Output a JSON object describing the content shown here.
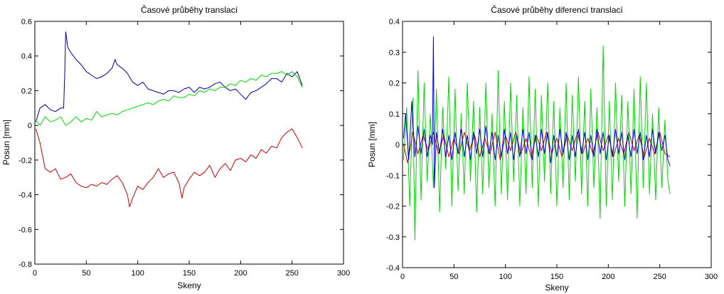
{
  "chart_data": [
    {
      "type": "line",
      "title": "Časové průběhy translací",
      "xlabel": "Skeny",
      "ylabel": "Posun [mm]",
      "xlim": [
        0,
        300
      ],
      "ylim": [
        -0.8,
        0.6
      ],
      "xticks": [
        0,
        50,
        100,
        150,
        200,
        250,
        300
      ],
      "xtick_labels": [
        "0",
        "50",
        "100",
        "150",
        "200",
        "250",
        "300"
      ],
      "yticks": [
        0.6,
        0.4,
        0.2,
        0,
        -0.2,
        -0.4,
        -0.6,
        -0.8
      ],
      "ytick_labels": [
        "0.6",
        "0.4",
        "0.2",
        "0",
        "-0.2",
        "-0.4",
        "-0.6",
        "-0.8"
      ],
      "grid": false,
      "legend": "none",
      "series": [
        {
          "color": "#0000a0",
          "x": [
            1,
            5,
            10,
            15,
            20,
            25,
            28,
            29,
            30,
            32,
            35,
            40,
            45,
            50,
            55,
            60,
            65,
            70,
            75,
            78,
            80,
            85,
            90,
            95,
            100,
            105,
            110,
            115,
            120,
            125,
            130,
            135,
            140,
            145,
            150,
            155,
            160,
            165,
            170,
            175,
            180,
            185,
            190,
            195,
            200,
            205,
            210,
            215,
            220,
            225,
            230,
            235,
            240,
            245,
            250,
            255,
            260
          ],
          "y": [
            0.02,
            0.1,
            0.12,
            0.09,
            0.08,
            0.1,
            0.1,
            0.3,
            0.54,
            0.45,
            0.42,
            0.38,
            0.35,
            0.31,
            0.29,
            0.27,
            0.28,
            0.3,
            0.33,
            0.38,
            0.35,
            0.33,
            0.3,
            0.25,
            0.23,
            0.25,
            0.21,
            0.2,
            0.19,
            0.18,
            0.2,
            0.2,
            0.19,
            0.21,
            0.22,
            0.19,
            0.22,
            0.21,
            0.22,
            0.24,
            0.25,
            0.22,
            0.2,
            0.21,
            0.18,
            0.15,
            0.19,
            0.2,
            0.22,
            0.24,
            0.27,
            0.27,
            0.25,
            0.3,
            0.28,
            0.31,
            0.23
          ]
        },
        {
          "color": "#00d800",
          "x": [
            1,
            5,
            10,
            15,
            20,
            25,
            30,
            35,
            40,
            45,
            50,
            55,
            60,
            65,
            70,
            75,
            80,
            85,
            90,
            95,
            100,
            105,
            110,
            115,
            120,
            125,
            130,
            135,
            140,
            145,
            150,
            155,
            160,
            165,
            170,
            175,
            180,
            185,
            190,
            195,
            200,
            205,
            210,
            215,
            220,
            225,
            230,
            235,
            240,
            245,
            250,
            255,
            260
          ],
          "y": [
            0.03,
            0.0,
            0.05,
            0.02,
            0.03,
            0.05,
            0.0,
            0.02,
            0.05,
            0.02,
            0.04,
            0.03,
            0.08,
            0.05,
            0.06,
            0.07,
            0.06,
            0.08,
            0.09,
            0.1,
            0.11,
            0.12,
            0.13,
            0.12,
            0.14,
            0.15,
            0.14,
            0.17,
            0.16,
            0.16,
            0.18,
            0.17,
            0.2,
            0.19,
            0.21,
            0.2,
            0.22,
            0.22,
            0.24,
            0.23,
            0.26,
            0.25,
            0.27,
            0.26,
            0.29,
            0.28,
            0.3,
            0.3,
            0.31,
            0.29,
            0.31,
            0.28,
            0.22
          ]
        },
        {
          "color": "#c80000",
          "x": [
            1,
            5,
            10,
            15,
            20,
            25,
            30,
            35,
            40,
            45,
            50,
            55,
            60,
            65,
            70,
            75,
            80,
            85,
            90,
            92,
            95,
            100,
            105,
            110,
            115,
            120,
            125,
            130,
            135,
            140,
            143,
            145,
            150,
            155,
            160,
            165,
            170,
            175,
            180,
            185,
            190,
            195,
            200,
            205,
            210,
            215,
            220,
            225,
            230,
            235,
            240,
            245,
            250,
            255,
            260
          ],
          "y": [
            -0.02,
            -0.1,
            -0.25,
            -0.27,
            -0.25,
            -0.31,
            -0.3,
            -0.28,
            -0.33,
            -0.35,
            -0.36,
            -0.34,
            -0.35,
            -0.33,
            -0.34,
            -0.31,
            -0.29,
            -0.33,
            -0.4,
            -0.47,
            -0.42,
            -0.35,
            -0.37,
            -0.33,
            -0.3,
            -0.25,
            -0.3,
            -0.28,
            -0.27,
            -0.33,
            -0.42,
            -0.36,
            -0.31,
            -0.27,
            -0.29,
            -0.27,
            -0.23,
            -0.3,
            -0.25,
            -0.22,
            -0.26,
            -0.2,
            -0.19,
            -0.21,
            -0.17,
            -0.19,
            -0.14,
            -0.16,
            -0.12,
            -0.13,
            -0.07,
            -0.04,
            -0.02,
            -0.07,
            -0.13
          ]
        }
      ]
    },
    {
      "type": "line",
      "title": "Časové průběhy diferencí translací",
      "xlabel": "Skeny",
      "ylabel": "Posun [mm]",
      "xlim": [
        0,
        300
      ],
      "ylim": [
        -0.4,
        0.4
      ],
      "xticks": [
        0,
        50,
        100,
        150,
        200,
        250,
        300
      ],
      "xtick_labels": [
        "0",
        "50",
        "100",
        "150",
        "200",
        "250",
        "300"
      ],
      "yticks": [
        0.4,
        0.3,
        0.2,
        0.1,
        0,
        -0.1,
        -0.2,
        -0.3,
        -0.4
      ],
      "ytick_labels": [
        "0.4",
        "0.3",
        "0.2",
        "0.1",
        "0",
        "-0.1",
        "-0.2",
        "-0.3",
        "-0.4"
      ],
      "grid": false,
      "legend": "none",
      "series": [
        {
          "color": "#00d800",
          "x": [
            1,
            4,
            7,
            10,
            12,
            15,
            18,
            21,
            24,
            27,
            30,
            33,
            36,
            39,
            42,
            45,
            48,
            51,
            54,
            57,
            60,
            63,
            66,
            69,
            72,
            75,
            78,
            81,
            84,
            87,
            90,
            93,
            96,
            99,
            102,
            105,
            108,
            111,
            114,
            117,
            120,
            123,
            126,
            129,
            132,
            135,
            138,
            141,
            144,
            147,
            150,
            153,
            156,
            159,
            162,
            165,
            168,
            171,
            174,
            177,
            180,
            183,
            186,
            189,
            192,
            195,
            198,
            201,
            204,
            207,
            210,
            213,
            216,
            219,
            222,
            225,
            228,
            231,
            234,
            237,
            240,
            243,
            246,
            249,
            252,
            255,
            258,
            260
          ],
          "y": [
            -0.05,
            0.12,
            -0.2,
            0.15,
            -0.31,
            0.24,
            -0.18,
            0.2,
            -0.12,
            0.1,
            -0.14,
            0.18,
            -0.22,
            0.12,
            -0.08,
            0.22,
            -0.2,
            0.18,
            -0.15,
            0.1,
            -0.16,
            0.2,
            -0.12,
            0.14,
            -0.22,
            0.12,
            -0.16,
            0.2,
            -0.14,
            0.1,
            -0.2,
            0.24,
            -0.16,
            0.14,
            -0.18,
            0.2,
            -0.12,
            0.16,
            -0.2,
            0.12,
            -0.16,
            0.22,
            -0.14,
            0.18,
            -0.2,
            0.16,
            -0.12,
            0.2,
            -0.16,
            0.14,
            -0.2,
            0.12,
            -0.14,
            0.2,
            -0.18,
            0.16,
            -0.12,
            0.22,
            -0.16,
            0.14,
            -0.2,
            0.18,
            -0.14,
            0.12,
            -0.24,
            0.32,
            -0.2,
            0.14,
            -0.18,
            0.2,
            -0.12,
            0.16,
            -0.2,
            0.14,
            -0.16,
            0.18,
            -0.24,
            0.22,
            -0.14,
            0.2,
            -0.16,
            0.1,
            -0.18,
            0.12,
            -0.14,
            0.08,
            -0.12,
            -0.16
          ]
        },
        {
          "color": "#c80000",
          "x": [
            1,
            5,
            10,
            15,
            20,
            25,
            30,
            35,
            40,
            45,
            50,
            55,
            60,
            65,
            70,
            75,
            80,
            85,
            90,
            95,
            100,
            105,
            110,
            115,
            120,
            125,
            130,
            135,
            140,
            145,
            150,
            155,
            160,
            165,
            170,
            175,
            180,
            185,
            190,
            195,
            200,
            205,
            210,
            215,
            220,
            225,
            230,
            235,
            240,
            245,
            250,
            255,
            260
          ],
          "y": [
            0.0,
            -0.06,
            0.04,
            -0.03,
            0.03,
            -0.02,
            0.04,
            -0.03,
            0.03,
            -0.04,
            0.02,
            -0.03,
            0.04,
            -0.02,
            0.03,
            -0.04,
            0.02,
            -0.03,
            0.04,
            -0.05,
            0.03,
            -0.02,
            0.04,
            -0.03,
            0.02,
            -0.04,
            0.03,
            -0.02,
            0.04,
            -0.03,
            0.02,
            -0.04,
            0.03,
            -0.02,
            0.04,
            -0.03,
            0.02,
            -0.03,
            0.04,
            -0.02,
            0.03,
            -0.04,
            0.02,
            -0.03,
            0.04,
            -0.02,
            0.03,
            -0.04,
            0.02,
            -0.03,
            0.04,
            -0.03,
            -0.04
          ]
        },
        {
          "color": "#0000e0",
          "x": [
            1,
            3,
            6,
            9,
            12,
            15,
            18,
            21,
            24,
            27,
            29,
            30,
            31,
            33,
            36,
            39,
            42,
            45,
            48,
            51,
            54,
            57,
            60,
            63,
            66,
            69,
            72,
            75,
            78,
            81,
            84,
            87,
            90,
            93,
            96,
            99,
            102,
            105,
            108,
            111,
            114,
            117,
            120,
            123,
            126,
            129,
            132,
            135,
            138,
            141,
            144,
            147,
            150,
            153,
            156,
            159,
            162,
            165,
            168,
            171,
            174,
            177,
            180,
            183,
            186,
            189,
            192,
            195,
            198,
            201,
            204,
            207,
            210,
            213,
            216,
            219,
            222,
            225,
            228,
            231,
            234,
            237,
            240,
            243,
            246,
            249,
            252,
            255,
            258,
            260
          ],
          "y": [
            0.02,
            0.1,
            -0.05,
            0.14,
            -0.04,
            0.06,
            -0.03,
            0.05,
            -0.04,
            0.03,
            0.0,
            0.35,
            -0.14,
            0.04,
            -0.03,
            0.05,
            -0.04,
            0.03,
            -0.05,
            0.04,
            -0.03,
            0.05,
            -0.04,
            0.03,
            -0.05,
            0.04,
            -0.03,
            0.05,
            -0.04,
            0.06,
            -0.03,
            0.04,
            -0.05,
            0.03,
            -0.04,
            0.05,
            -0.03,
            0.04,
            -0.05,
            0.03,
            -0.04,
            0.05,
            -0.03,
            0.04,
            -0.05,
            0.03,
            -0.04,
            0.05,
            -0.03,
            0.04,
            -0.06,
            0.03,
            -0.04,
            0.05,
            -0.03,
            0.04,
            -0.05,
            0.03,
            -0.04,
            0.05,
            -0.03,
            0.04,
            -0.05,
            0.03,
            -0.04,
            0.05,
            -0.03,
            0.04,
            -0.05,
            0.03,
            -0.04,
            0.05,
            -0.03,
            0.04,
            -0.05,
            0.03,
            -0.04,
            0.05,
            -0.03,
            0.04,
            -0.05,
            0.03,
            -0.04,
            0.05,
            -0.03,
            0.04,
            -0.02,
            0.03,
            -0.05,
            -0.07
          ]
        }
      ]
    }
  ]
}
